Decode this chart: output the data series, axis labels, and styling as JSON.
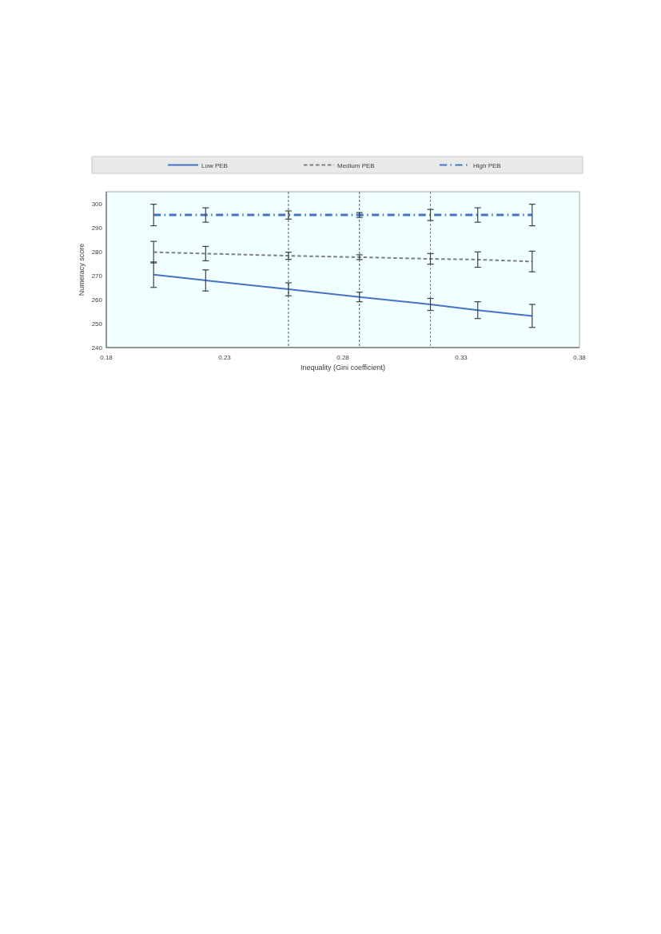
{
  "chart_data": {
    "type": "line",
    "xlabel": "Inequality (Gini coefficient)",
    "ylabel": "Numeracy score",
    "xlim": [
      0.18,
      0.38
    ],
    "xticks": [
      0.18,
      0.23,
      0.28,
      0.33,
      0.38
    ],
    "ylim": [
      240,
      305
    ],
    "yticks": [
      240,
      250,
      260,
      270,
      280,
      290,
      300
    ],
    "grid": false,
    "legend": "top",
    "marker": "none",
    "ref_lines": [
      {
        "axis": "x",
        "value": 0.257,
        "color": "#595959",
        "line_style": "dashed"
      },
      {
        "axis": "x",
        "value": 0.287,
        "color": "#595959",
        "line_style": "dashed"
      },
      {
        "axis": "x",
        "value": 0.317,
        "color": "#7f7f7f",
        "line_style": "dashed"
      }
    ],
    "series": [
      {
        "name": "Low PEB",
        "color": "#4472c4",
        "line_style": "solid",
        "x": [
          0.2,
          0.222,
          0.257,
          0.287,
          0.317,
          0.337,
          0.36
        ],
        "values": [
          270.4,
          268,
          264.3,
          261.1,
          258,
          255.6,
          253.2
        ],
        "errors": [
          5.3,
          4.4,
          2.7,
          2,
          2.5,
          3.5,
          4.8
        ]
      },
      {
        "name": "Medium PEB",
        "color": "#7f7f7f",
        "line_style": "dashed",
        "x": [
          0.2,
          0.222,
          0.257,
          0.287,
          0.317,
          0.337,
          0.36
        ],
        "values": [
          279.8,
          279.2,
          278.3,
          277.7,
          277,
          276.7,
          275.9
        ],
        "errors": [
          4.5,
          3,
          1.5,
          1,
          2.2,
          3.2,
          4.3
        ]
      },
      {
        "name": "High PEB",
        "color": "#4472c4",
        "line_style": "dashdot",
        "x": [
          0.2,
          0.222,
          0.257,
          0.287,
          0.317,
          0.337,
          0.36
        ],
        "values": [
          295.3,
          295.3,
          295.3,
          295.3,
          295.3,
          295.3,
          295.3
        ],
        "errors": [
          4.5,
          3,
          1.7,
          1,
          2.3,
          3,
          4.5
        ]
      }
    ]
  }
}
